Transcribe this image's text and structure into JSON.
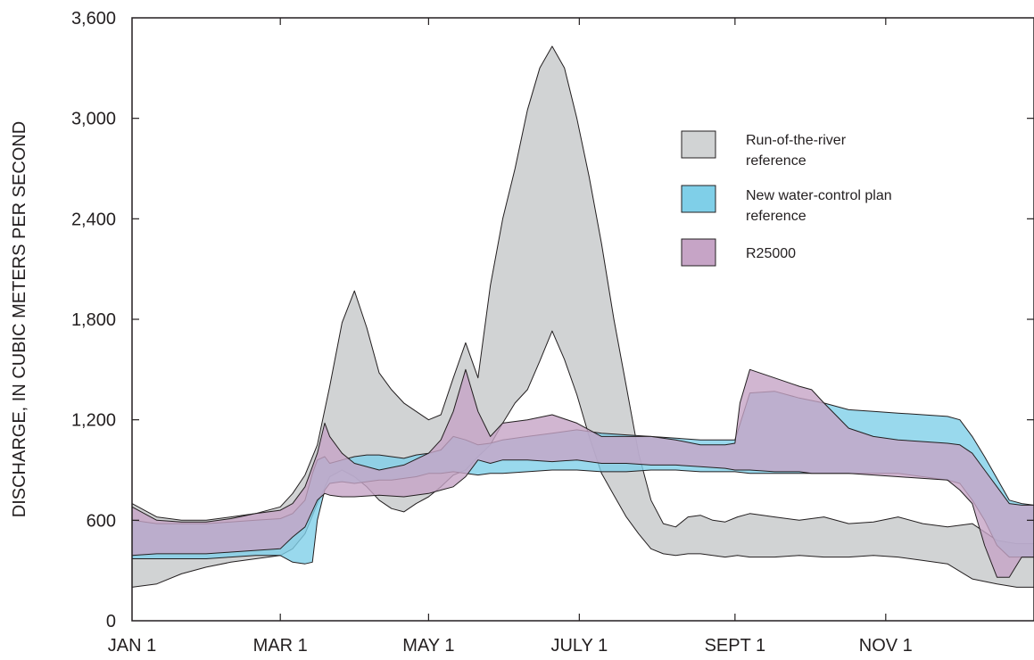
{
  "chart_data": {
    "type": "area",
    "ylabel": "DISCHARGE, IN CUBIC METERS PER SECOND",
    "xlabel": "",
    "ylim": [
      0,
      3600
    ],
    "yticks": [
      0,
      600,
      1200,
      1800,
      2400,
      3000,
      3600
    ],
    "ytick_labels": [
      "0",
      "600",
      "1,200",
      "1,800",
      "2,400",
      "3,000",
      "3,600"
    ],
    "xlim": [
      0,
      365
    ],
    "xticks": [
      0,
      60,
      120,
      181,
      244,
      305
    ],
    "xtick_labels": [
      "JAN 1",
      "MAR 1",
      "MAY 1",
      "JULY 1",
      "SEPT 1",
      "NOV 1"
    ],
    "x_unit": "day of year",
    "legend_position": "upper-right",
    "grid": false,
    "series": [
      {
        "name": "Run-of-the-river reference",
        "color": "#d1d3d4",
        "x": [
          0,
          10,
          20,
          30,
          40,
          50,
          60,
          65,
          70,
          75,
          80,
          85,
          90,
          95,
          100,
          105,
          110,
          115,
          120,
          125,
          130,
          135,
          140,
          145,
          150,
          155,
          160,
          165,
          170,
          175,
          180,
          185,
          190,
          195,
          200,
          205,
          210,
          215,
          220,
          225,
          230,
          235,
          240,
          245,
          250,
          260,
          270,
          280,
          290,
          300,
          310,
          320,
          330,
          340,
          350,
          358,
          365
        ],
        "upper": [
          700,
          620,
          600,
          600,
          620,
          640,
          680,
          760,
          870,
          1050,
          1400,
          1780,
          1970,
          1750,
          1480,
          1380,
          1300,
          1250,
          1200,
          1230,
          1450,
          1660,
          1450,
          2000,
          2400,
          2700,
          3050,
          3300,
          3430,
          3300,
          3000,
          2650,
          2250,
          1800,
          1400,
          1000,
          720,
          580,
          560,
          620,
          630,
          600,
          590,
          620,
          640,
          620,
          600,
          620,
          580,
          590,
          620,
          580,
          560,
          580,
          480,
          460,
          460
        ],
        "lower": [
          200,
          220,
          280,
          320,
          350,
          370,
          390,
          430,
          520,
          700,
          860,
          900,
          860,
          800,
          720,
          670,
          650,
          700,
          740,
          800,
          870,
          900,
          980,
          1050,
          1180,
          1300,
          1380,
          1550,
          1730,
          1560,
          1350,
          1100,
          880,
          750,
          620,
          520,
          430,
          400,
          390,
          400,
          400,
          390,
          380,
          390,
          380,
          380,
          390,
          380,
          380,
          390,
          380,
          360,
          340,
          250,
          220,
          200,
          200
        ]
      },
      {
        "name": "New water-control plan reference",
        "color": "#7fcfe8",
        "x": [
          0,
          10,
          20,
          30,
          40,
          50,
          60,
          65,
          70,
          73,
          75,
          78,
          80,
          85,
          90,
          95,
          100,
          105,
          110,
          115,
          120,
          125,
          130,
          135,
          140,
          145,
          150,
          160,
          170,
          180,
          190,
          200,
          210,
          220,
          230,
          240,
          244,
          250,
          260,
          270,
          280,
          290,
          300,
          310,
          320,
          330,
          335,
          340,
          345,
          350,
          355,
          360,
          365
        ],
        "upper": [
          600,
          580,
          580,
          580,
          590,
          600,
          610,
          640,
          720,
          880,
          960,
          980,
          940,
          960,
          980,
          990,
          990,
          980,
          970,
          990,
          1000,
          1020,
          1100,
          1080,
          1050,
          1060,
          1080,
          1100,
          1120,
          1140,
          1120,
          1110,
          1100,
          1090,
          1080,
          1080,
          1080,
          1360,
          1370,
          1330,
          1300,
          1260,
          1250,
          1240,
          1230,
          1220,
          1200,
          1100,
          980,
          850,
          720,
          700,
          690
        ],
        "lower": [
          370,
          370,
          370,
          370,
          380,
          390,
          390,
          350,
          340,
          350,
          600,
          780,
          820,
          830,
          820,
          830,
          840,
          840,
          850,
          860,
          880,
          880,
          890,
          880,
          870,
          880,
          880,
          890,
          900,
          900,
          890,
          890,
          900,
          900,
          890,
          890,
          890,
          880,
          880,
          880,
          880,
          880,
          880,
          880,
          860,
          840,
          820,
          720,
          600,
          450,
          380,
          380,
          380
        ]
      },
      {
        "name": "R25000",
        "color": "#c6a4c6",
        "x": [
          0,
          10,
          20,
          30,
          40,
          50,
          60,
          65,
          70,
          75,
          78,
          80,
          85,
          90,
          100,
          110,
          120,
          125,
          130,
          135,
          140,
          145,
          150,
          160,
          170,
          180,
          190,
          200,
          210,
          220,
          230,
          240,
          244,
          246,
          250,
          260,
          270,
          275,
          280,
          290,
          300,
          310,
          320,
          330,
          335,
          340,
          345,
          350,
          355,
          360,
          365
        ],
        "upper": [
          680,
          600,
          590,
          590,
          610,
          640,
          660,
          700,
          800,
          1000,
          1180,
          1100,
          1000,
          940,
          900,
          930,
          1000,
          1080,
          1250,
          1500,
          1250,
          1100,
          1180,
          1200,
          1230,
          1180,
          1100,
          1100,
          1100,
          1080,
          1050,
          1050,
          1060,
          1300,
          1500,
          1450,
          1400,
          1380,
          1300,
          1150,
          1100,
          1080,
          1070,
          1060,
          1050,
          1000,
          900,
          800,
          700,
          690,
          690
        ],
        "lower": [
          390,
          400,
          400,
          400,
          410,
          420,
          430,
          500,
          560,
          720,
          760,
          750,
          740,
          740,
          750,
          740,
          760,
          780,
          800,
          860,
          960,
          940,
          960,
          960,
          950,
          960,
          940,
          940,
          930,
          930,
          920,
          910,
          900,
          900,
          900,
          890,
          890,
          880,
          880,
          880,
          870,
          860,
          850,
          840,
          780,
          700,
          450,
          260,
          260,
          380,
          380
        ]
      }
    ],
    "legend": [
      {
        "line1": "Run-of-the-river",
        "line2": "reference"
      },
      {
        "line1": "New water-control plan",
        "line2": "reference"
      },
      {
        "line1": "R25000",
        "line2": ""
      }
    ]
  }
}
